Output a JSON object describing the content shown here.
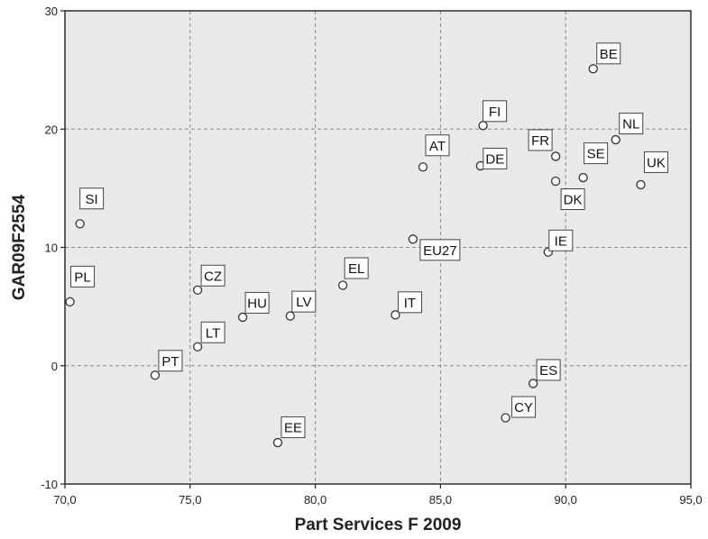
{
  "chart_data": {
    "type": "scatter",
    "xlabel": "Part Services F 2009",
    "ylabel": "GAR09F2554",
    "xlim": [
      70,
      95
    ],
    "ylim": [
      -10,
      30
    ],
    "x_ticks": [
      70,
      75,
      80,
      85,
      90,
      95
    ],
    "y_ticks": [
      -10,
      0,
      10,
      20,
      30
    ],
    "x_tick_labels": [
      "70,0",
      "75,0",
      "80,0",
      "85,0",
      "90,0",
      "95,0"
    ],
    "y_tick_labels": [
      "-10",
      "0",
      "10",
      "20",
      "30"
    ],
    "grid": true,
    "points": [
      {
        "label": "SI",
        "x": 70.6,
        "y": 12.0
      },
      {
        "label": "PL",
        "x": 70.2,
        "y": 5.4
      },
      {
        "label": "CZ",
        "x": 75.3,
        "y": 6.4
      },
      {
        "label": "LT",
        "x": 75.3,
        "y": 1.6
      },
      {
        "label": "PT",
        "x": 73.6,
        "y": -0.8
      },
      {
        "label": "HU",
        "x": 77.1,
        "y": 4.1
      },
      {
        "label": "LV",
        "x": 79.0,
        "y": 4.2
      },
      {
        "label": "EE",
        "x": 78.5,
        "y": -6.5
      },
      {
        "label": "EL",
        "x": 81.1,
        "y": 6.8
      },
      {
        "label": "IT",
        "x": 83.2,
        "y": 4.3
      },
      {
        "label": "EU27",
        "x": 83.9,
        "y": 10.7
      },
      {
        "label": "AT",
        "x": 84.3,
        "y": 16.8
      },
      {
        "label": "FI",
        "x": 86.7,
        "y": 20.3
      },
      {
        "label": "DE",
        "x": 86.6,
        "y": 16.9
      },
      {
        "label": "FR",
        "x": 89.6,
        "y": 17.7
      },
      {
        "label": "DK",
        "x": 89.6,
        "y": 15.6
      },
      {
        "label": "SE",
        "x": 90.7,
        "y": 15.9
      },
      {
        "label": "IE",
        "x": 89.3,
        "y": 9.6
      },
      {
        "label": "ES",
        "x": 88.7,
        "y": -1.5
      },
      {
        "label": "CY",
        "x": 87.6,
        "y": -4.4
      },
      {
        "label": "BE",
        "x": 91.1,
        "y": 25.1
      },
      {
        "label": "NL",
        "x": 92.0,
        "y": 19.1
      },
      {
        "label": "UK",
        "x": 93.0,
        "y": 15.3
      }
    ]
  }
}
